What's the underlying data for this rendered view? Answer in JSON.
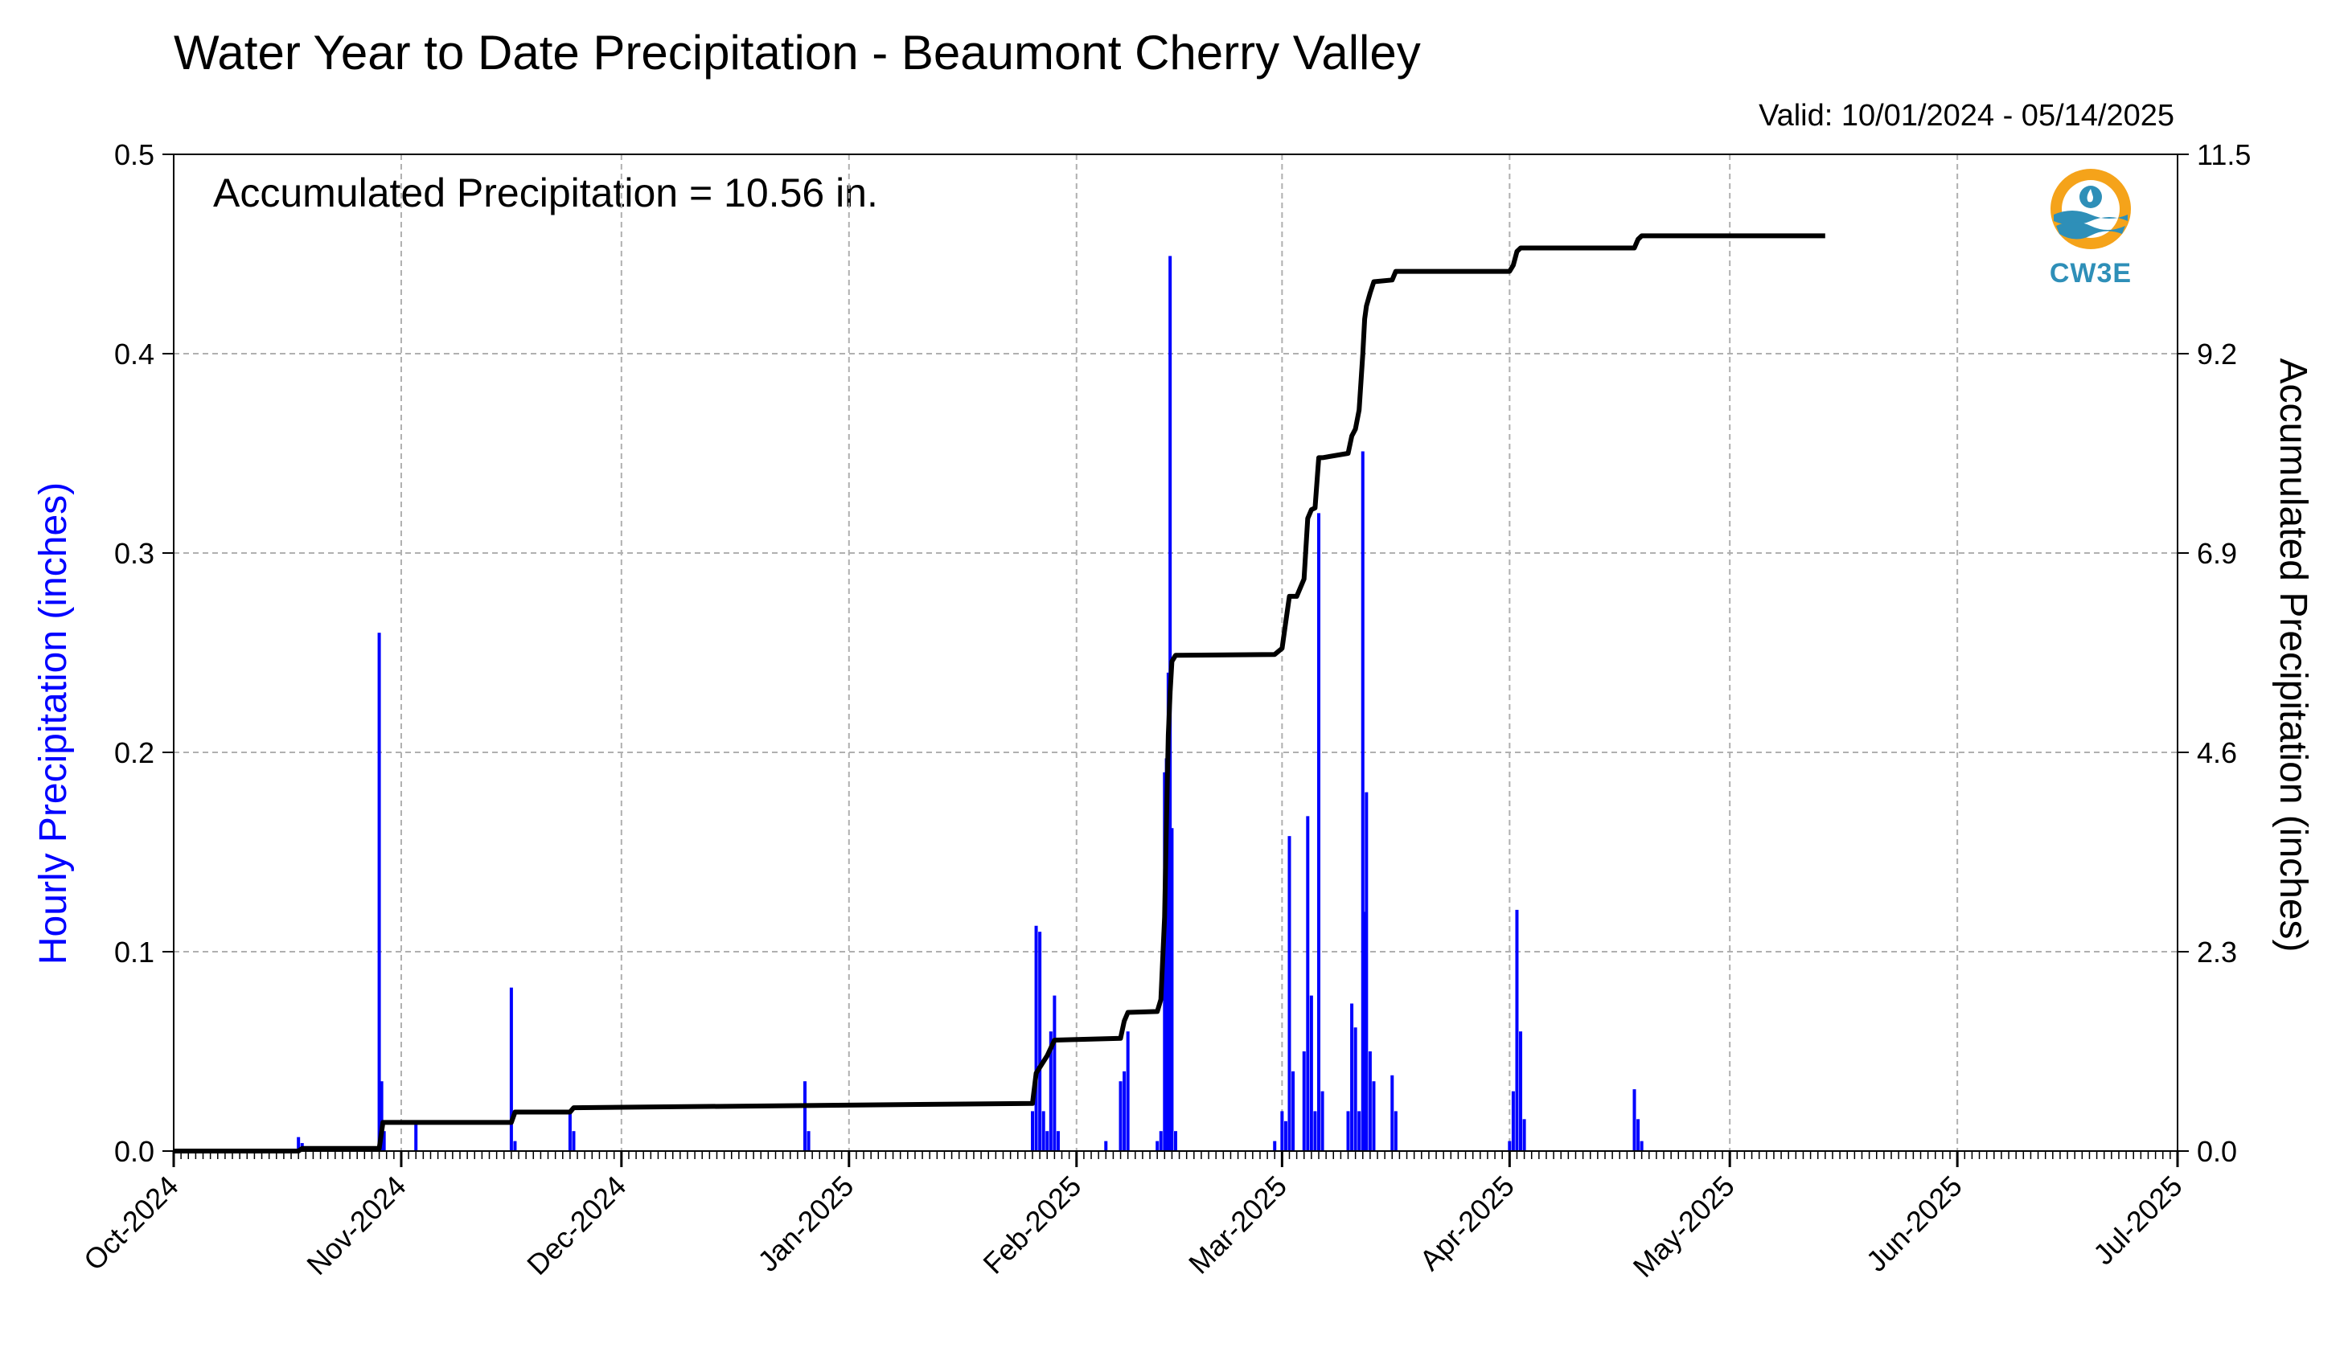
{
  "chart_data": {
    "type": "bar+line",
    "title": "Water Year to Date Precipitation - Beaumont Cherry Valley",
    "valid": "Valid: 10/01/2024 - 05/14/2025",
    "annotation": "Accumulated Precipitation = 10.56 in.",
    "logo_text": "CW3E",
    "ylabel_left": "Hourly Precipitation (inches)",
    "ylabel_right": "Accumulated Precipitation (inches)",
    "xlim": [
      "2024-10-01",
      "2025-07-01"
    ],
    "ylim_left": [
      0,
      0.5
    ],
    "ylim_right": [
      0,
      11.5
    ],
    "left_ticks": [
      "0.0",
      "0.1",
      "0.2",
      "0.3",
      "0.4",
      "0.5"
    ],
    "right_ticks": [
      "0.0",
      "2.3",
      "4.6",
      "6.9",
      "9.2",
      "11.5"
    ],
    "x_tick_labels": [
      "Oct-2024",
      "Nov-2024",
      "Dec-2024",
      "Jan-2025",
      "Feb-2025",
      "Mar-2025",
      "Apr-2025",
      "May-2025",
      "Jun-2025",
      "Jul-2025"
    ],
    "x_tick_dates": [
      "2024-10-01",
      "2024-11-01",
      "2024-12-01",
      "2025-01-01",
      "2025-02-01",
      "2025-03-01",
      "2025-04-01",
      "2025-05-01",
      "2025-06-01",
      "2025-07-01"
    ],
    "grid": true,
    "colors": {
      "hourly": "#0000ff",
      "accumulated": "#000000",
      "grid": "#b0b0b0"
    },
    "series": [
      {
        "name": "Hourly Precipitation (inches)",
        "type": "bar",
        "points": [
          [
            "2024-10-18",
            0.007
          ],
          [
            "2024-10-18T12",
            0.004
          ],
          [
            "2024-10-29",
            0.26
          ],
          [
            "2024-10-29T08",
            0.035
          ],
          [
            "2024-10-29T16",
            0.01
          ],
          [
            "2024-11-03",
            0.015
          ],
          [
            "2024-11-16",
            0.082
          ],
          [
            "2024-11-16T12",
            0.005
          ],
          [
            "2024-11-24",
            0.02
          ],
          [
            "2024-11-24T12",
            0.01
          ],
          [
            "2024-12-26",
            0.035
          ],
          [
            "2024-12-26T12",
            0.01
          ],
          [
            "2025-01-26",
            0.02
          ],
          [
            "2025-01-26T12",
            0.113
          ],
          [
            "2025-01-27",
            0.11
          ],
          [
            "2025-01-27T12",
            0.02
          ],
          [
            "2025-01-28",
            0.01
          ],
          [
            "2025-01-28T12",
            0.06
          ],
          [
            "2025-01-29",
            0.078
          ],
          [
            "2025-01-29T12",
            0.01
          ],
          [
            "2025-02-05",
            0.005
          ],
          [
            "2025-02-07",
            0.035
          ],
          [
            "2025-02-07T12",
            0.04
          ],
          [
            "2025-02-08",
            0.06
          ],
          [
            "2025-02-12",
            0.005
          ],
          [
            "2025-02-12T12",
            0.01
          ],
          [
            "2025-02-13",
            0.19
          ],
          [
            "2025-02-13T06",
            0.197
          ],
          [
            "2025-02-13T12",
            0.24
          ],
          [
            "2025-02-13T18",
            0.449
          ],
          [
            "2025-02-14",
            0.162
          ],
          [
            "2025-02-14T12",
            0.01
          ],
          [
            "2025-02-28",
            0.005
          ],
          [
            "2025-03-01",
            0.02
          ],
          [
            "2025-03-01T12",
            0.015
          ],
          [
            "2025-03-02",
            0.158
          ],
          [
            "2025-03-02T12",
            0.04
          ],
          [
            "2025-03-04",
            0.05
          ],
          [
            "2025-03-04T12",
            0.168
          ],
          [
            "2025-03-05",
            0.078
          ],
          [
            "2025-03-05T12",
            0.02
          ],
          [
            "2025-03-06",
            0.32
          ],
          [
            "2025-03-06T12",
            0.03
          ],
          [
            "2025-03-10",
            0.02
          ],
          [
            "2025-03-10T12",
            0.074
          ],
          [
            "2025-03-11",
            0.062
          ],
          [
            "2025-03-11T12",
            0.02
          ],
          [
            "2025-03-12",
            0.351
          ],
          [
            "2025-03-12T06",
            0.12
          ],
          [
            "2025-03-12T12",
            0.18
          ],
          [
            "2025-03-13",
            0.05
          ],
          [
            "2025-03-13T12",
            0.035
          ],
          [
            "2025-03-16",
            0.038
          ],
          [
            "2025-03-16T12",
            0.02
          ],
          [
            "2025-04-01",
            0.005
          ],
          [
            "2025-04-01T12",
            0.03
          ],
          [
            "2025-04-02",
            0.121
          ],
          [
            "2025-04-02T12",
            0.06
          ],
          [
            "2025-04-03",
            0.016
          ],
          [
            "2025-04-18",
            0.031
          ],
          [
            "2025-04-18T12",
            0.016
          ],
          [
            "2025-04-19",
            0.005
          ]
        ]
      },
      {
        "name": "Accumulated Precipitation (inches)",
        "type": "line",
        "points": [
          [
            "2024-10-01",
            0.0
          ],
          [
            "2024-10-18",
            0.0
          ],
          [
            "2024-10-18T12",
            0.03
          ],
          [
            "2024-10-29",
            0.03
          ],
          [
            "2024-10-29T12",
            0.33
          ],
          [
            "2024-11-16",
            0.33
          ],
          [
            "2024-11-16T12",
            0.45
          ],
          [
            "2024-11-24",
            0.45
          ],
          [
            "2024-11-24T12",
            0.5
          ],
          [
            "2025-01-26",
            0.55
          ],
          [
            "2025-01-26T12",
            0.9
          ],
          [
            "2025-01-28",
            1.1
          ],
          [
            "2025-01-29",
            1.28
          ],
          [
            "2025-02-07",
            1.3
          ],
          [
            "2025-02-07T12",
            1.5
          ],
          [
            "2025-02-08",
            1.6
          ],
          [
            "2025-02-12",
            1.61
          ],
          [
            "2025-02-12T12",
            1.75
          ],
          [
            "2025-02-13",
            2.7
          ],
          [
            "2025-02-13T06",
            3.8
          ],
          [
            "2025-02-13T12",
            4.8
          ],
          [
            "2025-02-13T18",
            5.3
          ],
          [
            "2025-02-14",
            5.65
          ],
          [
            "2025-02-14T12",
            5.72
          ],
          [
            "2025-02-28",
            5.73
          ],
          [
            "2025-03-01",
            5.8
          ],
          [
            "2025-03-01T12",
            6.1
          ],
          [
            "2025-03-02",
            6.4
          ],
          [
            "2025-03-02T12",
            6.4
          ],
          [
            "2025-03-03",
            6.4
          ],
          [
            "2025-03-04",
            6.6
          ],
          [
            "2025-03-04T12",
            7.3
          ],
          [
            "2025-03-05",
            7.4
          ],
          [
            "2025-03-05T12",
            7.42
          ],
          [
            "2025-03-06",
            8.0
          ],
          [
            "2025-03-06T12",
            8.0
          ],
          [
            "2025-03-10",
            8.05
          ],
          [
            "2025-03-10T12",
            8.25
          ],
          [
            "2025-03-11",
            8.33
          ],
          [
            "2025-03-11T12",
            8.55
          ],
          [
            "2025-03-12",
            9.2
          ],
          [
            "2025-03-12T06",
            9.6
          ],
          [
            "2025-03-12T12",
            9.75
          ],
          [
            "2025-03-13",
            9.9
          ],
          [
            "2025-03-13T12",
            10.03
          ],
          [
            "2025-03-16",
            10.05
          ],
          [
            "2025-03-16T12",
            10.15
          ],
          [
            "2025-04-01",
            10.15
          ],
          [
            "2025-04-01T12",
            10.22
          ],
          [
            "2025-04-02",
            10.38
          ],
          [
            "2025-04-02T12",
            10.42
          ],
          [
            "2025-04-18",
            10.42
          ],
          [
            "2025-04-18T12",
            10.52
          ],
          [
            "2025-04-19",
            10.56
          ],
          [
            "2025-05-14",
            10.56
          ]
        ]
      }
    ]
  }
}
